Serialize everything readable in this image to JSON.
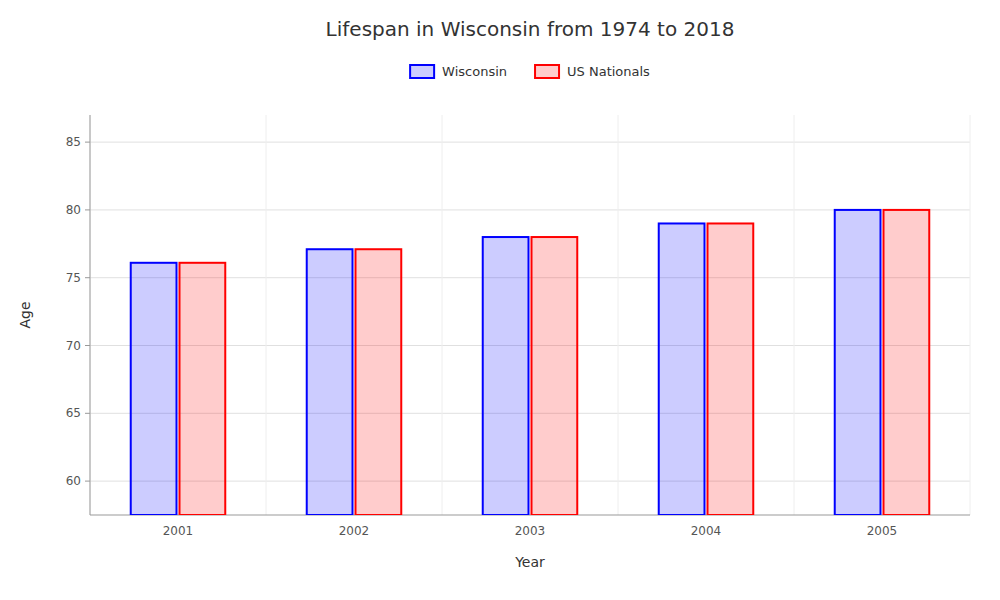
{
  "chart_data": {
    "type": "bar",
    "title": "Lifespan in Wisconsin from 1974 to 2018",
    "x_label": "Year",
    "y_label": "Age",
    "categories": [
      "2001",
      "2002",
      "2003",
      "2004",
      "2005"
    ],
    "series": [
      {
        "name": "Wisconsin",
        "color": "#0000ff",
        "values": [
          76.1,
          77.1,
          78.0,
          79.0,
          80.0
        ]
      },
      {
        "name": "US Nationals",
        "color": "#ff0000",
        "values": [
          76.1,
          77.1,
          78.0,
          79.0,
          80.0
        ]
      }
    ],
    "ylim": [
      57.5,
      87
    ],
    "yticks": [
      60,
      65,
      70,
      75,
      80,
      85
    ],
    "grid": true,
    "legend": "top"
  }
}
